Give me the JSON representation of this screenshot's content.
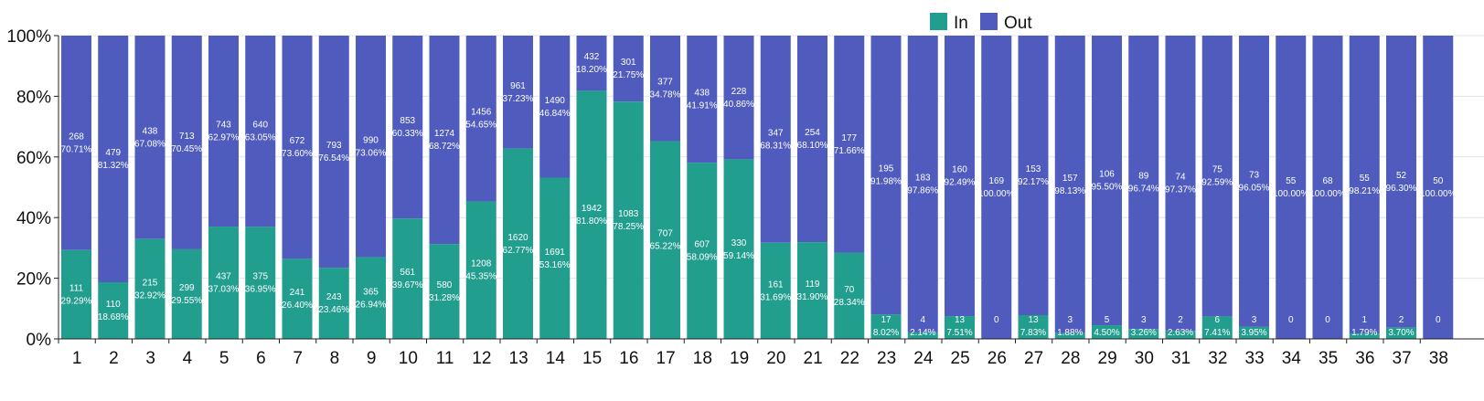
{
  "chart_data": {
    "type": "bar",
    "stacked": true,
    "normalized": true,
    "categories": [
      "1",
      "2",
      "3",
      "4",
      "5",
      "6",
      "7",
      "8",
      "9",
      "10",
      "11",
      "12",
      "13",
      "14",
      "15",
      "16",
      "17",
      "18",
      "19",
      "20",
      "21",
      "22",
      "23",
      "24",
      "25",
      "26",
      "27",
      "28",
      "29",
      "30",
      "31",
      "32",
      "33",
      "34",
      "35",
      "36",
      "37",
      "38"
    ],
    "series": [
      {
        "name": "In",
        "color": "#229e8f",
        "values": [
          111,
          110,
          215,
          299,
          437,
          375,
          241,
          243,
          365,
          561,
          580,
          1208,
          1620,
          1691,
          1942,
          1083,
          707,
          607,
          330,
          161,
          119,
          70,
          17,
          4,
          13,
          0,
          13,
          3,
          5,
          3,
          2,
          6,
          3,
          0,
          0,
          1,
          2,
          0
        ],
        "percent_labels": [
          "29.29%",
          "18.68%",
          "32.92%",
          "29.55%",
          "37.03%",
          "36.95%",
          "26.40%",
          "23.46%",
          "26.94%",
          "39.67%",
          "31.28%",
          "45.35%",
          "62.77%",
          "53.16%",
          "81.80%",
          "78.25%",
          "65.22%",
          "58.09%",
          "59.14%",
          "31.69%",
          "31.90%",
          "28.34%",
          "8.02%",
          "2.14%",
          "7.51%",
          "",
          "7.83%",
          "1.88%",
          "4.50%",
          "3.26%",
          "2.63%",
          "7.41%",
          "3.95%",
          "",
          "",
          "1.79%",
          "3.70%",
          ""
        ]
      },
      {
        "name": "Out",
        "color": "#4f5cbd",
        "values": [
          268,
          479,
          438,
          713,
          743,
          640,
          672,
          793,
          990,
          853,
          1274,
          1456,
          961,
          1490,
          432,
          301,
          377,
          438,
          228,
          347,
          254,
          177,
          195,
          183,
          160,
          169,
          153,
          157,
          106,
          89,
          74,
          75,
          73,
          55,
          68,
          55,
          52,
          50
        ],
        "percent_labels": [
          "70.71%",
          "81.32%",
          "67.08%",
          "70.45%",
          "62.97%",
          "63.05%",
          "73.60%",
          "76.54%",
          "73.06%",
          "60.33%",
          "68.72%",
          "54.65%",
          "37.23%",
          "46.84%",
          "18.20%",
          "21.75%",
          "34.78%",
          "41.91%",
          "40.86%",
          "68.31%",
          "68.10%",
          "71.66%",
          "91.98%",
          "97.86%",
          "92.49%",
          "100.00%",
          "92.17%",
          "98.13%",
          "95.50%",
          "96.74%",
          "97.37%",
          "92.59%",
          "96.05%",
          "100.00%",
          "100.00%",
          "98.21%",
          "96.30%",
          "100.00%"
        ]
      }
    ],
    "y_ticks": [
      "0%",
      "20%",
      "40%",
      "60%",
      "80%",
      "100%"
    ],
    "ylim": [
      0,
      100
    ],
    "grid": true,
    "legend_position": "top-right",
    "title": "",
    "xlabel": "",
    "ylabel": ""
  }
}
